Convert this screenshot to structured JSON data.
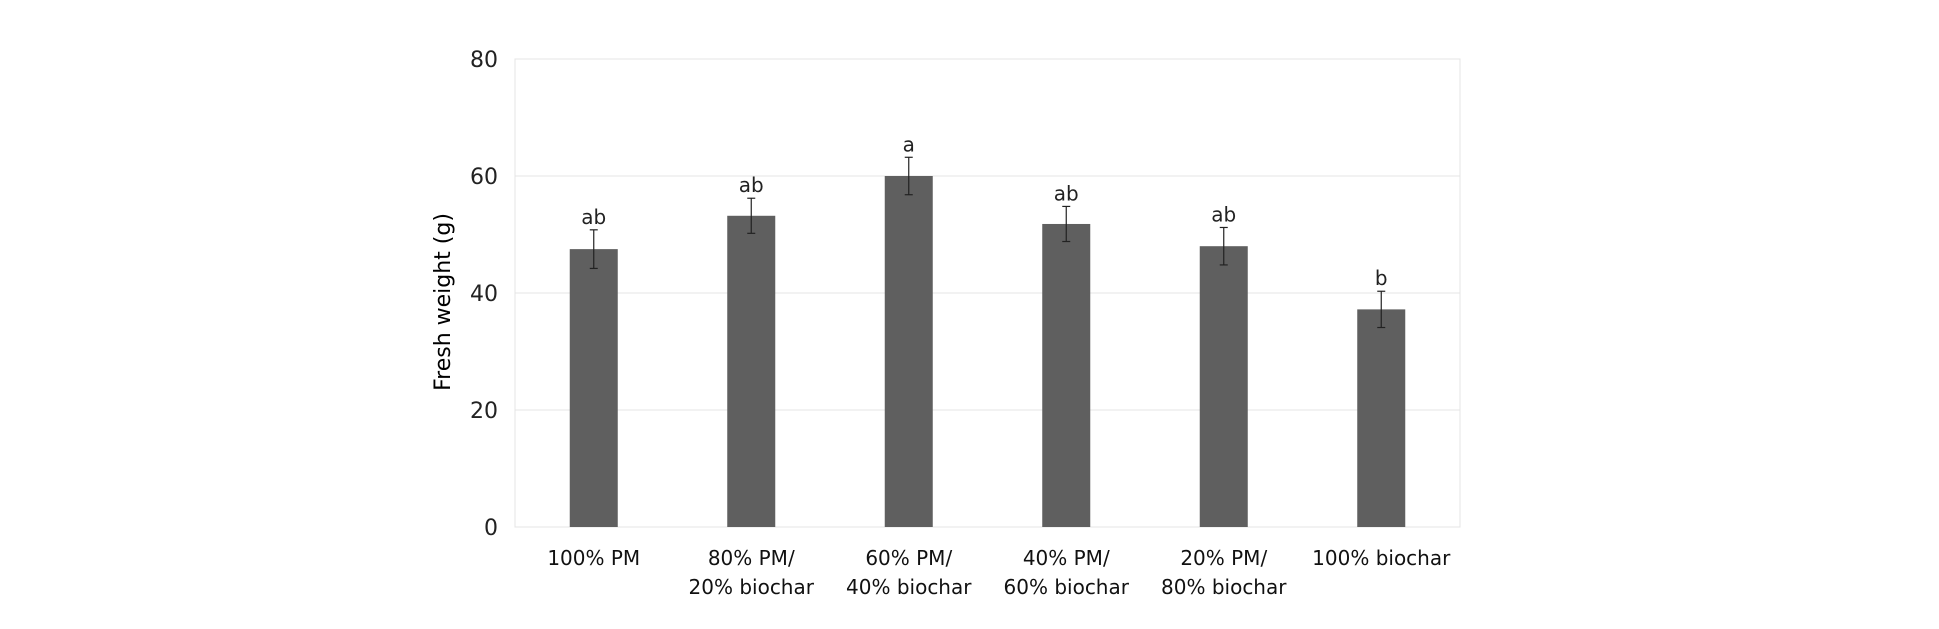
{
  "chart_data": {
    "type": "bar",
    "title": "",
    "xlabel": "",
    "ylabel": "Fresh weight (g)",
    "ylim": [
      0,
      80
    ],
    "yticks": [
      0,
      20,
      40,
      60,
      80
    ],
    "grid": true,
    "legend": "none",
    "categories": [
      [
        "100% PM"
      ],
      [
        "80% PM/",
        "20% biochar"
      ],
      [
        "60% PM/",
        "40% biochar"
      ],
      [
        "40% PM/",
        "60% biochar"
      ],
      [
        "20% PM/",
        "80% biochar"
      ],
      [
        "100% biochar"
      ]
    ],
    "values": [
      47.5,
      53.2,
      60.0,
      51.8,
      48.0,
      37.2
    ],
    "errors": [
      3.3,
      3.0,
      3.2,
      3.0,
      3.2,
      3.1
    ],
    "data_labels": [
      "ab",
      "ab",
      "a",
      "ab",
      "ab",
      "b"
    ],
    "colors": {
      "bar": "#5f5f5f",
      "grid": "#e4e4e4",
      "error_bar": "#222222"
    }
  }
}
